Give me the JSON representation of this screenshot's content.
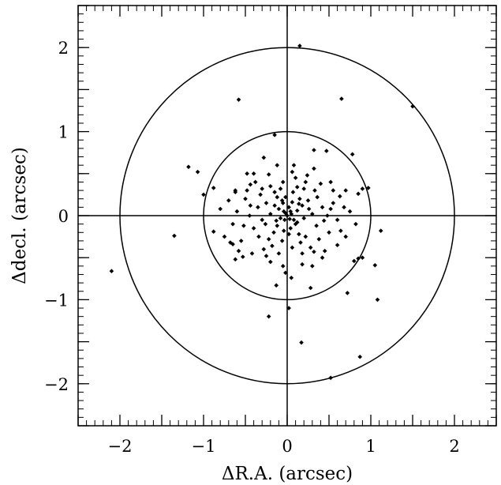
{
  "chart_data": {
    "type": "scatter",
    "title": "",
    "xlabel": "ΔR.A. (arcsec)",
    "ylabel": "Δdecl. (arcsec)",
    "xlim": [
      -2.5,
      2.5
    ],
    "ylim": [
      -2.5,
      2.5
    ],
    "xticks": [
      -2,
      -1,
      0,
      1,
      2
    ],
    "yticks": [
      -2,
      -1,
      0,
      1,
      2
    ],
    "xtick_labels": [
      "−2",
      "−1",
      "0",
      "1",
      "2"
    ],
    "ytick_labels": [
      "−2",
      "−1",
      "0",
      "1",
      "2"
    ],
    "minor_tick_step": 0.1,
    "grid": false,
    "reference_lines": {
      "x0": 0,
      "y0": 0
    },
    "reference_circles": [
      1,
      2
    ],
    "marker": "diamond",
    "color": "#000000",
    "points": [
      [
        0.15,
        2.02
      ],
      [
        -0.58,
        1.38
      ],
      [
        0.65,
        1.39
      ],
      [
        1.5,
        1.3
      ],
      [
        -0.15,
        0.96
      ],
      [
        0.32,
        0.78
      ],
      [
        0.47,
        0.77
      ],
      [
        0.78,
        0.73
      ],
      [
        -0.28,
        0.69
      ],
      [
        -1.18,
        0.58
      ],
      [
        -1.07,
        0.52
      ],
      [
        -0.48,
        0.5
      ],
      [
        -0.22,
        0.49
      ],
      [
        0.06,
        0.52
      ],
      [
        0.32,
        0.56
      ],
      [
        -0.12,
        0.6
      ],
      [
        -0.88,
        0.33
      ],
      [
        0.9,
        0.32
      ],
      [
        0.97,
        0.33
      ],
      [
        0.85,
        0.26
      ],
      [
        -1.0,
        0.25
      ],
      [
        -0.62,
        0.3
      ],
      [
        -0.44,
        0.37
      ],
      [
        0.55,
        0.3
      ],
      [
        0.63,
        0.23
      ],
      [
        0.22,
        0.4
      ],
      [
        -0.05,
        0.4
      ],
      [
        0.12,
        0.34
      ],
      [
        -2.1,
        -0.66
      ],
      [
        -1.35,
        -0.24
      ],
      [
        -0.88,
        -0.19
      ],
      [
        -0.65,
        -0.34
      ],
      [
        -0.62,
        -0.52
      ],
      [
        -0.53,
        -0.49
      ],
      [
        1.12,
        -0.18
      ],
      [
        1.05,
        -0.59
      ],
      [
        0.85,
        -0.51
      ],
      [
        0.8,
        -0.54
      ],
      [
        0.9,
        -0.5
      ],
      [
        -0.13,
        -0.83
      ],
      [
        0.05,
        -0.74
      ],
      [
        -0.02,
        -0.68
      ],
      [
        0.3,
        -0.6
      ],
      [
        0.32,
        -0.43
      ],
      [
        0.02,
        -1.1
      ],
      [
        -0.22,
        -1.2
      ],
      [
        0.28,
        -0.86
      ],
      [
        1.08,
        -1.0
      ],
      [
        0.17,
        -1.51
      ],
      [
        0.87,
        -1.68
      ],
      [
        0.52,
        -1.93
      ],
      [
        0.72,
        -0.92
      ],
      [
        0.0,
        0.0
      ],
      [
        0.05,
        0.02
      ],
      [
        -0.04,
        0.05
      ],
      [
        0.08,
        -0.05
      ],
      [
        -0.08,
        -0.03
      ],
      [
        0.02,
        0.1
      ],
      [
        -0.1,
        0.08
      ],
      [
        0.12,
        0.06
      ],
      [
        0.1,
        -0.1
      ],
      [
        -0.12,
        -0.12
      ],
      [
        0.04,
        -0.15
      ],
      [
        -0.05,
        0.15
      ],
      [
        0.18,
        0.12
      ],
      [
        -0.2,
        0.02
      ],
      [
        0.2,
        -0.03
      ],
      [
        -0.16,
        -0.2
      ],
      [
        0.15,
        0.2
      ],
      [
        -0.25,
        0.15
      ],
      [
        0.25,
        0.18
      ],
      [
        -0.3,
        -0.05
      ],
      [
        0.3,
        0.02
      ],
      [
        -0.22,
        -0.28
      ],
      [
        0.22,
        -0.25
      ],
      [
        -0.06,
        -0.3
      ],
      [
        0.07,
        0.28
      ],
      [
        -0.35,
        0.1
      ],
      [
        0.35,
        -0.12
      ],
      [
        -0.4,
        -0.15
      ],
      [
        0.42,
        0.1
      ],
      [
        -0.32,
        0.25
      ],
      [
        0.33,
        0.3
      ],
      [
        -0.28,
        -0.4
      ],
      [
        0.28,
        -0.38
      ],
      [
        -0.45,
        0.0
      ],
      [
        0.48,
        0.0
      ],
      [
        -0.5,
        0.2
      ],
      [
        0.5,
        -0.2
      ],
      [
        -0.55,
        -0.3
      ],
      [
        0.55,
        0.15
      ],
      [
        -0.6,
        0.05
      ],
      [
        0.6,
        -0.05
      ],
      [
        -0.38,
        0.4
      ],
      [
        0.4,
        0.38
      ],
      [
        -0.2,
        0.35
      ],
      [
        0.18,
        -0.45
      ],
      [
        -0.42,
        -0.45
      ],
      [
        0.45,
        -0.42
      ],
      [
        -0.1,
        -0.45
      ],
      [
        0.1,
        0.45
      ],
      [
        -0.65,
        -0.1
      ],
      [
        0.68,
        0.1
      ],
      [
        -0.7,
        0.18
      ],
      [
        0.7,
        -0.25
      ],
      [
        -0.75,
        -0.25
      ],
      [
        0.75,
        0.05
      ],
      [
        -0.8,
        0.08
      ],
      [
        0.82,
        -0.1
      ],
      [
        -0.48,
        0.3
      ],
      [
        0.52,
        0.4
      ],
      [
        -0.58,
        -0.42
      ],
      [
        0.6,
        -0.35
      ],
      [
        -0.12,
        0.22
      ],
      [
        0.14,
        -0.22
      ],
      [
        -0.26,
        -0.1
      ],
      [
        0.26,
        0.08
      ],
      [
        -0.34,
        -0.25
      ],
      [
        0.36,
        0.22
      ],
      [
        -0.15,
        0.28
      ],
      [
        0.16,
        -0.32
      ],
      [
        -0.02,
        0.22
      ],
      [
        0.02,
        -0.22
      ],
      [
        -0.08,
        0.32
      ],
      [
        0.06,
        -0.38
      ],
      [
        -0.18,
        -0.36
      ],
      [
        0.2,
        0.32
      ],
      [
        -0.3,
        0.32
      ],
      [
        0.38,
        -0.28
      ],
      [
        -0.44,
        0.12
      ],
      [
        0.44,
        -0.06
      ],
      [
        -0.52,
        -0.12
      ],
      [
        0.52,
        0.08
      ],
      [
        -0.62,
        0.28
      ],
      [
        0.64,
        -0.18
      ],
      [
        -0.68,
        -0.32
      ],
      [
        0.7,
        0.3
      ],
      [
        -0.25,
        -0.48
      ],
      [
        0.24,
        0.48
      ],
      [
        -0.4,
        0.5
      ],
      [
        0.42,
        -0.5
      ],
      [
        -0.2,
        -0.55
      ],
      [
        0.18,
        -0.58
      ],
      [
        -0.05,
        -0.6
      ],
      [
        0.08,
        0.6
      ],
      [
        -0.15,
        0.12
      ],
      [
        0.14,
        0.14
      ],
      [
        -0.13,
        -0.06
      ],
      [
        0.12,
        -0.08
      ],
      [
        -0.06,
        0.18
      ],
      [
        0.06,
        0.16
      ],
      [
        -0.04,
        -0.18
      ],
      [
        0.04,
        0.05
      ],
      [
        -0.03,
        -0.05
      ],
      [
        0.03,
        -0.04
      ],
      [
        -0.02,
        0.03
      ]
    ]
  }
}
